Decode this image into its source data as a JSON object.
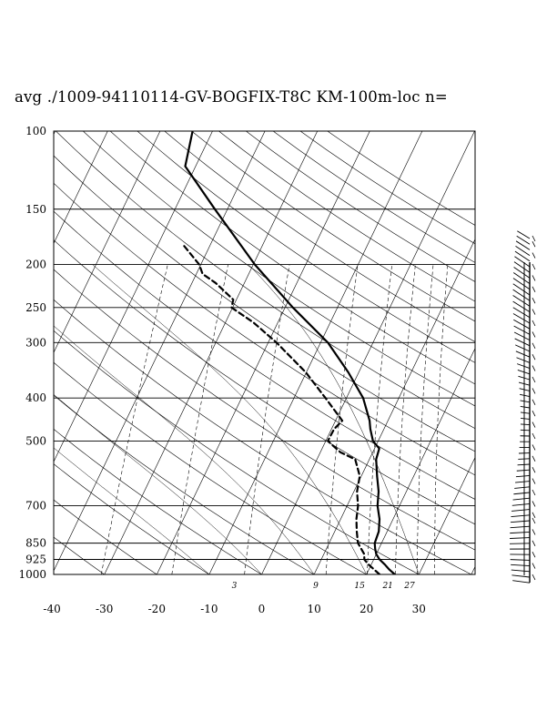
{
  "title": "avg ./1009-94110114-GV-BOGFIX-T8C KM-100m-loc n=",
  "chart_data": {
    "type": "line",
    "plot_kind": "skew-T log-P sounding",
    "title": "avg ./1009-94110114-GV-BOGFIX-T8C KM-100m-loc n=",
    "xlabel": "",
    "ylabel": "",
    "pressure_ticks": [
      100,
      150,
      200,
      250,
      300,
      400,
      500,
      700,
      850,
      925,
      1000
    ],
    "pressure_tick_labels": [
      "100",
      "150",
      "200",
      "250",
      "300",
      "400",
      "500",
      "700",
      "850",
      "925",
      "1000"
    ],
    "temperature_ticks": [
      -40,
      -30,
      -20,
      -10,
      0,
      10,
      20,
      30
    ],
    "temperature_tick_labels": [
      "-40",
      "-30",
      "-20",
      "-10",
      "0",
      "10",
      "20",
      "30"
    ],
    "xlim": [
      -40,
      40
    ],
    "ylim": [
      1000,
      100
    ],
    "y_scale": "log",
    "mixing_ratio_labels": [
      "3",
      "9",
      "15",
      "21",
      "27"
    ],
    "series": [
      {
        "values": [
          {
            "p": 1000,
            "t": 25.4
          },
          {
            "p": 975,
            "t": 23.9
          },
          {
            "p": 950,
            "t": 22.6
          },
          {
            "p": 925,
            "t": 21.1
          },
          {
            "p": 900,
            "t": 20.0
          },
          {
            "p": 875,
            "t": 19.3
          },
          {
            "p": 850,
            "t": 18.7
          },
          {
            "p": 800,
            "t": 18.4
          },
          {
            "p": 750,
            "t": 17.4
          },
          {
            "p": 700,
            "t": 15.8
          },
          {
            "p": 650,
            "t": 14.7
          },
          {
            "p": 600,
            "t": 13.0
          },
          {
            "p": 550,
            "t": 11.3
          },
          {
            "p": 520,
            "t": 10.9
          },
          {
            "p": 500,
            "t": 9.0
          },
          {
            "p": 470,
            "t": 7.4
          },
          {
            "p": 450,
            "t": 6.5
          },
          {
            "p": 400,
            "t": 3.2
          },
          {
            "p": 350,
            "t": -2.0
          },
          {
            "p": 300,
            "t": -8.6
          },
          {
            "p": 250,
            "t": -18.5
          },
          {
            "p": 200,
            "t": -29.7
          },
          {
            "p": 150,
            "t": -42.4
          },
          {
            "p": 120,
            "t": -52.0
          },
          {
            "p": 100,
            "t": -53.8
          }
        ]
      },
      {
        "values": [
          {
            "p": 1000,
            "t": 22.5
          },
          {
            "p": 950,
            "t": 19.5
          },
          {
            "p": 925,
            "t": 18.2
          },
          {
            "p": 900,
            "t": 17.7
          },
          {
            "p": 850,
            "t": 15.5
          },
          {
            "p": 800,
            "t": 14.2
          },
          {
            "p": 750,
            "t": 13.0
          },
          {
            "p": 700,
            "t": 12.1
          },
          {
            "p": 650,
            "t": 10.6
          },
          {
            "p": 600,
            "t": 9.7
          },
          {
            "p": 550,
            "t": 7.3
          },
          {
            "p": 530,
            "t": 3.8
          },
          {
            "p": 500,
            "t": 0.4
          },
          {
            "p": 470,
            "t": 0.5
          },
          {
            "p": 450,
            "t": 1.3
          },
          {
            "p": 400,
            "t": -4.0
          },
          {
            "p": 350,
            "t": -10.1
          },
          {
            "p": 300,
            "t": -18.4
          },
          {
            "p": 270,
            "t": -24.7
          },
          {
            "p": 250,
            "t": -30.2
          },
          {
            "p": 240,
            "t": -30.6
          },
          {
            "p": 220,
            "t": -35.5
          },
          {
            "p": 210,
            "t": -38.8
          },
          {
            "p": 200,
            "t": -40.3
          },
          {
            "p": 180,
            "t": -45.3
          }
        ]
      }
    ]
  }
}
